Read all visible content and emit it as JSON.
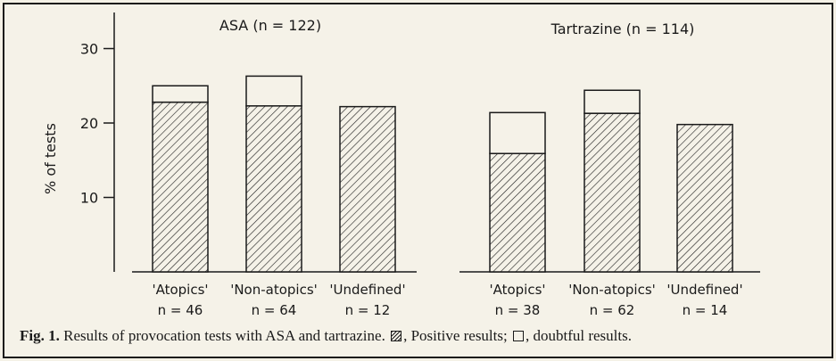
{
  "chart_data": [
    {
      "type": "bar",
      "stacked": true,
      "title": "ASA (n = 122)",
      "ylabel": "% of tests",
      "ylim": [
        0,
        30
      ],
      "yticks": [
        "10",
        "20",
        "30"
      ],
      "categories": [
        "'Atopics'",
        "'Non-atopics'",
        "'Undefined'"
      ],
      "category_n": [
        "n = 46",
        "n = 64",
        "n = 12"
      ],
      "series": [
        {
          "values": [
            22.8,
            22.3,
            22.2
          ]
        },
        {
          "values": [
            2.2,
            4.0,
            0
          ]
        }
      ]
    },
    {
      "type": "bar",
      "stacked": true,
      "title": "Tartrazine (n = 114)",
      "ylim": [
        0,
        30
      ],
      "categories": [
        "'Atopics'",
        "'Non-atopics'",
        "'Undefined'"
      ],
      "category_n": [
        "n = 38",
        "n = 62",
        "n = 14"
      ],
      "series": [
        {
          "values": [
            15.9,
            21.3,
            19.8
          ]
        },
        {
          "values": [
            5.5,
            3.1,
            0
          ]
        }
      ]
    }
  ],
  "caption": {
    "label": "Fig. 1.",
    "text_1": "Results of provocation tests with ASA and tartrazine.",
    "text_2": ", Positive results;",
    "text_3": ", doubtful results."
  },
  "colors": {
    "ink": "#1a1a1a",
    "paper": "#f5f2e8"
  }
}
